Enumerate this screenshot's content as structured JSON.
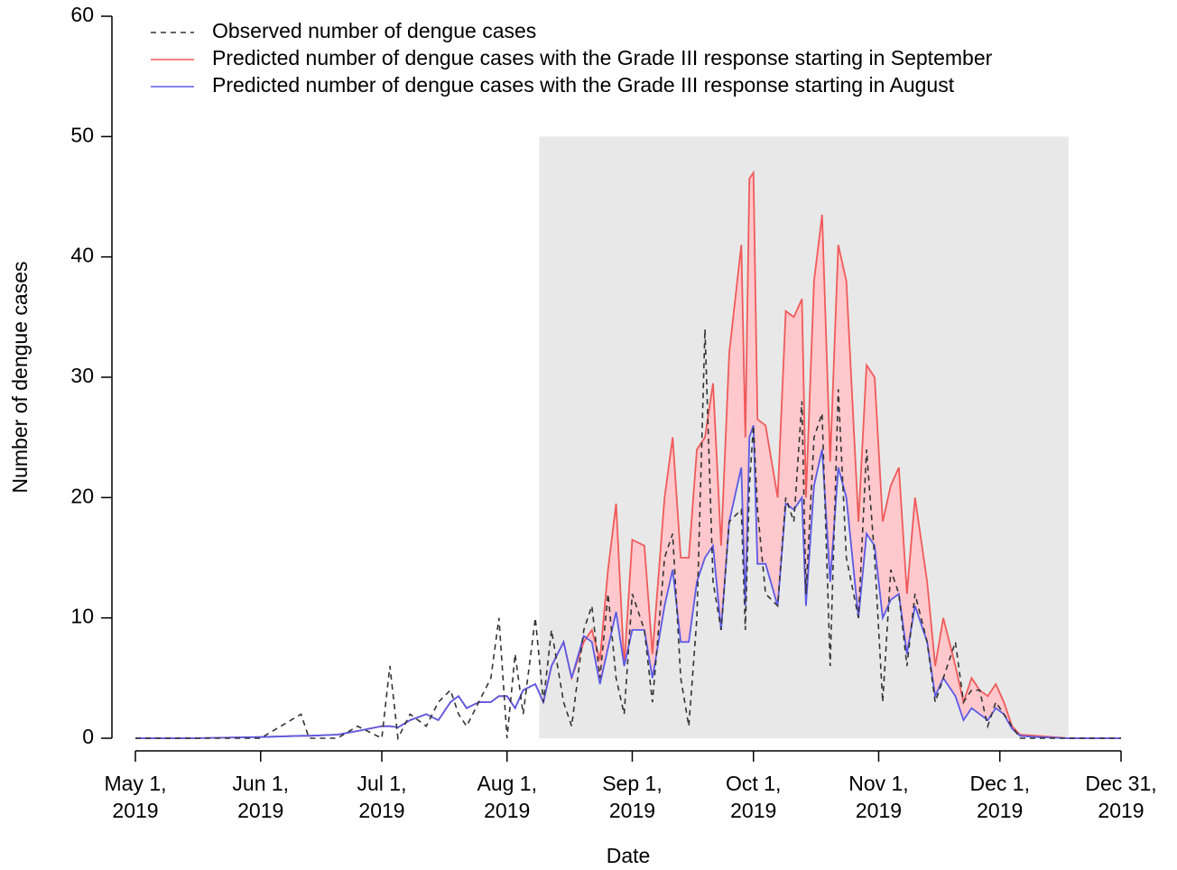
{
  "chart_data": {
    "type": "line",
    "xlabel": "Date",
    "ylabel": "Number of dengue cases",
    "xlim": [
      "2019-05-01",
      "2019-12-31"
    ],
    "xticks": [
      {
        "value": "2019-05-01",
        "label": "May 1,\n2019"
      },
      {
        "value": "2019-06-01",
        "label": "Jun 1,\n2019"
      },
      {
        "value": "2019-07-01",
        "label": "Jul 1,\n2019"
      },
      {
        "value": "2019-08-01",
        "label": "Aug 1,\n2019"
      },
      {
        "value": "2019-09-01",
        "label": "Sep 1,\n2019"
      },
      {
        "value": "2019-10-01",
        "label": "Oct 1,\n2019"
      },
      {
        "value": "2019-11-01",
        "label": "Nov 1,\n2019"
      },
      {
        "value": "2019-12-01",
        "label": "Dec 1,\n2019"
      },
      {
        "value": "2019-12-31",
        "label": "Dec 31,\n2019"
      }
    ],
    "ylim": [
      0,
      60
    ],
    "yticks": [
      0,
      10,
      20,
      30,
      40,
      50,
      60
    ],
    "shaded_period": {
      "x": [
        "2019-08-09",
        "2019-12-18"
      ],
      "y": [
        0,
        50
      ],
      "color": "#e8e8e8"
    },
    "fill_between": {
      "series": [
        1,
        2
      ],
      "color": "#ffc8cc"
    },
    "legend": "top-left",
    "x": [
      "2019-05-01",
      "2019-05-15",
      "2019-06-01",
      "2019-06-11",
      "2019-06-13",
      "2019-06-20",
      "2019-06-25",
      "2019-07-01",
      "2019-07-03",
      "2019-07-05",
      "2019-07-08",
      "2019-07-12",
      "2019-07-15",
      "2019-07-18",
      "2019-07-20",
      "2019-07-22",
      "2019-07-25",
      "2019-07-28",
      "2019-07-30",
      "2019-08-01",
      "2019-08-03",
      "2019-08-05",
      "2019-08-08",
      "2019-08-10",
      "2019-08-12",
      "2019-08-15",
      "2019-08-17",
      "2019-08-20",
      "2019-08-22",
      "2019-08-24",
      "2019-08-26",
      "2019-08-28",
      "2019-08-30",
      "2019-09-01",
      "2019-09-04",
      "2019-09-06",
      "2019-09-09",
      "2019-09-11",
      "2019-09-13",
      "2019-09-15",
      "2019-09-17",
      "2019-09-19",
      "2019-09-21",
      "2019-09-23",
      "2019-09-25",
      "2019-09-28",
      "2019-09-29",
      "2019-09-30",
      "2019-10-01",
      "2019-10-02",
      "2019-10-04",
      "2019-10-07",
      "2019-10-09",
      "2019-10-11",
      "2019-10-13",
      "2019-10-14",
      "2019-10-16",
      "2019-10-18",
      "2019-10-20",
      "2019-10-22",
      "2019-10-24",
      "2019-10-27",
      "2019-10-29",
      "2019-10-31",
      "2019-11-02",
      "2019-11-04",
      "2019-11-06",
      "2019-11-08",
      "2019-11-10",
      "2019-11-13",
      "2019-11-15",
      "2019-11-17",
      "2019-11-20",
      "2019-11-22",
      "2019-11-24",
      "2019-11-26",
      "2019-11-28",
      "2019-11-30",
      "2019-12-02",
      "2019-12-04",
      "2019-12-06",
      "2019-12-10",
      "2019-12-18",
      "2019-12-31"
    ],
    "series": [
      {
        "name": "Observed number of dengue cases",
        "color": "#333333",
        "dash": true,
        "values": [
          0,
          0,
          0,
          2,
          0,
          0,
          1,
          0,
          6,
          0,
          2,
          1,
          3,
          4,
          2,
          1,
          3,
          5,
          10,
          0,
          7,
          2,
          10,
          3,
          9,
          3,
          1,
          9,
          11,
          5,
          12,
          5,
          2,
          12,
          9,
          3,
          15,
          17,
          5,
          1,
          10,
          34,
          13,
          9,
          18,
          19,
          9,
          21,
          26,
          19,
          12,
          11,
          20,
          18,
          28,
          12,
          25,
          27,
          6,
          29,
          15,
          10,
          24,
          15,
          3,
          14,
          12,
          6,
          12,
          8,
          3,
          5,
          8,
          3,
          4,
          4,
          1,
          3,
          2,
          1,
          0,
          0,
          0,
          0
        ]
      },
      {
        "name": "Predicted number of dengue cases with the Grade III response starting in September",
        "color": "#f05a5a",
        "values": [
          0,
          0,
          0.1,
          0.2,
          0.2,
          0.3,
          0.6,
          1,
          1,
          0.9,
          1.5,
          2,
          1.5,
          3,
          3.5,
          2.5,
          3,
          3,
          3.5,
          3.5,
          2.5,
          4,
          4.5,
          3,
          6,
          8,
          5,
          8,
          9,
          6.5,
          14,
          19.5,
          6,
          16.5,
          16,
          7,
          20,
          25,
          15,
          15,
          24,
          25,
          29.5,
          16,
          32,
          41,
          25,
          46.5,
          47,
          26.5,
          26,
          20,
          35.5,
          35,
          36.5,
          20,
          38,
          43.5,
          23,
          41,
          38,
          18,
          31,
          30,
          18,
          21,
          22.5,
          12,
          20,
          13,
          6,
          10,
          6,
          3,
          5,
          4,
          3.5,
          4.5,
          3,
          1,
          0.3,
          0.2,
          0,
          0
        ]
      },
      {
        "name": "Predicted number of dengue cases with the Grade III response starting in August",
        "color": "#5a5ae6",
        "values": [
          0,
          0,
          0.1,
          0.2,
          0.2,
          0.3,
          0.6,
          1,
          1,
          0.9,
          1.5,
          2,
          1.5,
          3,
          3.5,
          2.5,
          3,
          3,
          3.5,
          3.5,
          2.5,
          4,
          4.5,
          3,
          6,
          8,
          5,
          8.5,
          8,
          4.5,
          7.5,
          10.5,
          6,
          9,
          9,
          5,
          11,
          14,
          8,
          8,
          13,
          15,
          16,
          9,
          18,
          22.5,
          11,
          25,
          26,
          14.5,
          14.5,
          11,
          19.5,
          19,
          20,
          11,
          21,
          24,
          13,
          22.5,
          20,
          10,
          17,
          16,
          10,
          11.5,
          12,
          7,
          11,
          8,
          3.5,
          5,
          3.5,
          1.5,
          2.5,
          2,
          1.5,
          2.5,
          2,
          0.8,
          0.2,
          0.1,
          0,
          0
        ]
      }
    ]
  }
}
